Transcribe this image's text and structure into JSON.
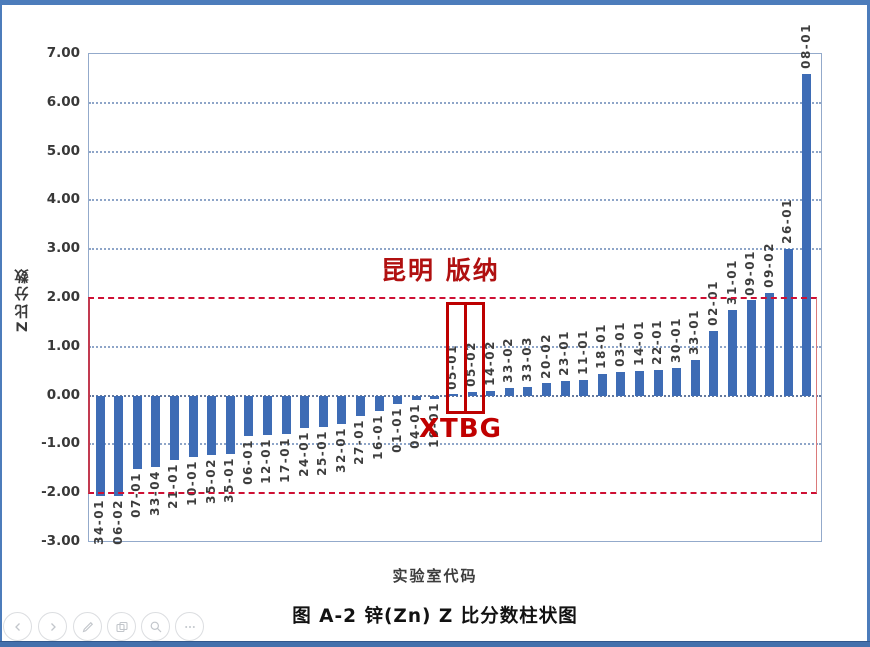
{
  "frame": {
    "border_color": "#4C7CBB",
    "bottom_bar_color": "#4470AC"
  },
  "chart_data": {
    "type": "bar",
    "title": "图 A-2 锌(Zn)  Z 比分数柱状图",
    "xlabel": "实验室代码",
    "ylabel": "Z比分数",
    "ylim": [
      -3,
      7
    ],
    "ytick_labels": [
      "7.00",
      "6.00",
      "5.00",
      "4.00",
      "3.00",
      "2.00",
      "1.00",
      "0.00",
      "-1.00",
      "-2.00",
      "-3.00"
    ],
    "grid": true,
    "legend": "none",
    "bar_color": "#3E6CB5",
    "categories": [
      "34-01",
      "06-02",
      "07-01",
      "33-04",
      "21-01",
      "10-01",
      "35-02",
      "35-01",
      "06-01",
      "12-01",
      "17-01",
      "24-01",
      "25-01",
      "32-01",
      "27-01",
      "16-01",
      "01-01",
      "04-01",
      "19-01",
      "05-01",
      "05-02",
      "14-02",
      "33-02",
      "33-03",
      "20-02",
      "23-01",
      "11-01",
      "18-01",
      "03-01",
      "14-01",
      "22-01",
      "30-01",
      "33-01",
      "02-01",
      "31-01",
      "09-01",
      "09-02",
      "26-01",
      "08-01"
    ],
    "values": [
      -2.05,
      -2.05,
      -1.5,
      -1.46,
      -1.32,
      -1.25,
      -1.22,
      -1.2,
      -0.83,
      -0.8,
      -0.78,
      -0.66,
      -0.64,
      -0.58,
      -0.42,
      -0.32,
      -0.18,
      -0.1,
      -0.06,
      0.02,
      0.08,
      0.1,
      0.15,
      0.18,
      0.25,
      0.3,
      0.32,
      0.45,
      0.48,
      0.5,
      0.52,
      0.57,
      0.73,
      1.33,
      1.75,
      1.95,
      2.1,
      3.0,
      6.6
    ],
    "annotations": {
      "kunming_banna": "昆明 版纳",
      "xtbg": "XTBG",
      "highlighted_categories": [
        "05-01",
        "05-02"
      ],
      "highlight_box_color": "#BD0000",
      "reference_band": {
        "from": -2.0,
        "to": 2.0,
        "color": "#CE1034",
        "style": "dashed"
      }
    }
  },
  "toolbar": {
    "buttons": [
      {
        "name": "previous"
      },
      {
        "name": "next"
      },
      {
        "name": "pen"
      },
      {
        "name": "slides"
      },
      {
        "name": "zoom"
      },
      {
        "name": "more"
      }
    ]
  }
}
